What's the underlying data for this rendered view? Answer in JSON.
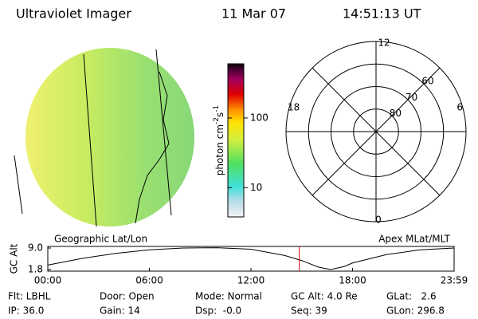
{
  "header": {
    "title": "Ultraviolet Imager",
    "date": "11 Mar 07",
    "time": "14:51:13 UT"
  },
  "colorbar": {
    "label_parts": [
      "photon cm",
      "-2",
      "s",
      "-1"
    ],
    "log": true,
    "lim": [
      3.8,
      600
    ],
    "ticks": [
      10,
      100
    ]
  },
  "polar": {
    "mlt_labels": [
      "12",
      "18",
      "6",
      "0"
    ],
    "lat_lim": [
      50,
      90
    ],
    "lat_rings": [
      80,
      70,
      60
    ]
  },
  "timeline": {
    "left_title": "Geographic Lat/Lon",
    "right_title": "Apex MLat/MLT",
    "ylabel": "GC Alt",
    "ylim": [
      1.8,
      9.0
    ],
    "yticks": [
      {
        "value": 9.0,
        "label": "9.0"
      },
      {
        "value": 1.8,
        "label": "1.8"
      }
    ],
    "xlim": [
      0,
      24
    ],
    "xticks": [
      {
        "value": 0,
        "label": "00:00"
      },
      {
        "value": 6,
        "label": "06:00"
      },
      {
        "value": 12,
        "label": "12:00"
      },
      {
        "value": 18,
        "label": "18:00"
      },
      {
        "value": 24,
        "label": "23:59"
      }
    ],
    "marker_hour": 14.854,
    "marker_color": "#cc0000",
    "x": [
      0,
      2,
      4,
      6,
      8,
      10,
      12,
      14,
      15,
      16,
      16.7,
      17.5,
      18,
      20,
      22,
      24
    ],
    "values": [
      3.3,
      5.5,
      7.2,
      8.4,
      9.0,
      9.1,
      8.6,
      6.5,
      4.8,
      2.6,
      1.8,
      2.8,
      4.0,
      6.8,
      8.4,
      9.0
    ]
  },
  "footer": {
    "rows": [
      [
        "Flt: LBHL",
        "Door: Open",
        "Mode: Normal",
        "GC Alt: 4.0 Re",
        "GLat:   2.6"
      ],
      [
        "IP: 36.0",
        "Gain: 14",
        "Dsp:  -0.0",
        "Seq: 39",
        "GLon: 296.8"
      ]
    ]
  }
}
